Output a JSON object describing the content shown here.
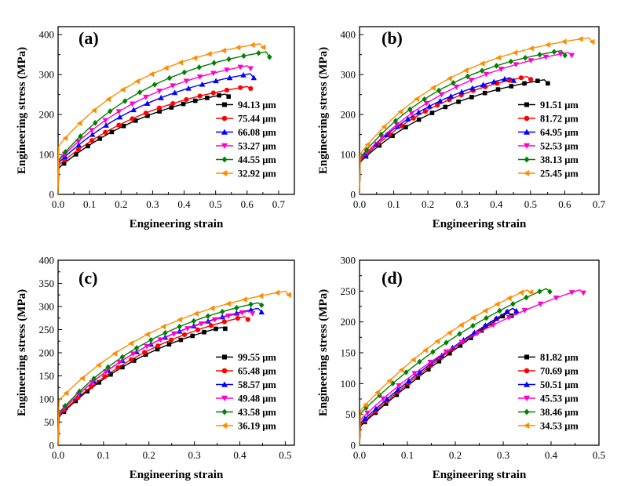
{
  "chart_data": [
    {
      "type": "line",
      "panel_label": "(a)",
      "xlabel": "Engineering strain",
      "ylabel": "Engineering stress (MPa)",
      "xlim": [
        0,
        0.75
      ],
      "ylim": [
        0,
        420
      ],
      "xticks": [
        0.0,
        0.1,
        0.2,
        0.3,
        0.4,
        0.5,
        0.6,
        0.7
      ],
      "yticks": [
        0,
        100,
        200,
        300,
        400
      ],
      "grid": false,
      "legend_position": "bottom-right",
      "series": [
        {
          "name": "94.13 μm",
          "color": "#000000",
          "marker": "square",
          "y0": 65,
          "end_x": 0.53,
          "end_y": 251,
          "drop_y": 245,
          "k": 2.8
        },
        {
          "name": "75.44 μm",
          "color": "#ff0000",
          "marker": "circle",
          "y0": 72,
          "end_x": 0.6,
          "end_y": 270,
          "drop_y": 265,
          "k": 2.8
        },
        {
          "name": "66.08 μm",
          "color": "#0000ff",
          "marker": "triangle-up",
          "y0": 78,
          "end_x": 0.61,
          "end_y": 302,
          "drop_y": 292,
          "k": 2.8
        },
        {
          "name": "53.27 μm",
          "color": "#ff00cc",
          "marker": "triangle-down",
          "y0": 83,
          "end_x": 0.6,
          "end_y": 322,
          "drop_y": 315,
          "k": 2.9
        },
        {
          "name": "44.55 μm",
          "color": "#008000",
          "marker": "diamond",
          "y0": 85,
          "end_x": 0.66,
          "end_y": 357,
          "drop_y": 344,
          "k": 3.0
        },
        {
          "name": "32.92 μm",
          "color": "#ff8c00",
          "marker": "triangle-left",
          "y0": 120,
          "end_x": 0.64,
          "end_y": 377,
          "drop_y": 368,
          "k": 3.2
        }
      ]
    },
    {
      "type": "line",
      "panel_label": "(b)",
      "xlabel": "Engineering strain",
      "ylabel": "Engineering stress (MPa)",
      "xlim": [
        0,
        0.7
      ],
      "ylim": [
        0,
        420
      ],
      "xticks": [
        0.0,
        0.1,
        0.2,
        0.3,
        0.4,
        0.5,
        0.6,
        0.7
      ],
      "yticks": [
        0,
        100,
        200,
        300,
        400
      ],
      "grid": false,
      "legend_position": "bottom-right",
      "series": [
        {
          "name": "91.51 μm",
          "color": "#000000",
          "marker": "square",
          "y0": 80,
          "end_x": 0.54,
          "end_y": 287,
          "drop_y": 278,
          "k": 3.2
        },
        {
          "name": "81.72 μm",
          "color": "#ff0000",
          "marker": "circle",
          "y0": 82,
          "end_x": 0.49,
          "end_y": 295,
          "drop_y": 288,
          "k": 3.4
        },
        {
          "name": "64.95 μm",
          "color": "#0000ff",
          "marker": "triangle-up",
          "y0": 85,
          "end_x": 0.44,
          "end_y": 292,
          "drop_y": 285,
          "k": 3.6
        },
        {
          "name": "52.53 μm",
          "color": "#ff00cc",
          "marker": "triangle-down",
          "y0": 85,
          "end_x": 0.61,
          "end_y": 355,
          "drop_y": 348,
          "k": 3.0
        },
        {
          "name": "38.13 μm",
          "color": "#008000",
          "marker": "diamond",
          "y0": 90,
          "end_x": 0.59,
          "end_y": 360,
          "drop_y": 348,
          "k": 3.4
        },
        {
          "name": "25.45 μm",
          "color": "#ff8c00",
          "marker": "triangle-left",
          "y0": 100,
          "end_x": 0.67,
          "end_y": 392,
          "drop_y": 382,
          "k": 3.3
        }
      ]
    },
    {
      "type": "line",
      "panel_label": "(c)",
      "xlabel": "Engineering strain",
      "ylabel": "Engineering stress (MPa)",
      "xlim": [
        0,
        0.52
      ],
      "ylim": [
        0,
        400
      ],
      "xticks": [
        0.0,
        0.1,
        0.2,
        0.3,
        0.4,
        0.5
      ],
      "yticks": [
        0,
        50,
        100,
        150,
        200,
        250,
        300,
        350,
        400
      ],
      "grid": false,
      "legend_position": "bottom-right",
      "series": [
        {
          "name": "99.55 μm",
          "color": "#000000",
          "marker": "square",
          "y0": 60,
          "end_x": 0.36,
          "end_y": 255,
          "drop_y": 252,
          "k": 3.8
        },
        {
          "name": "65.48 μm",
          "color": "#ff0000",
          "marker": "circle",
          "y0": 62,
          "end_x": 0.41,
          "end_y": 278,
          "drop_y": 272,
          "k": 3.6
        },
        {
          "name": "58.57 μm",
          "color": "#0000ff",
          "marker": "triangle-up",
          "y0": 65,
          "end_x": 0.44,
          "end_y": 296,
          "drop_y": 288,
          "k": 3.8
        },
        {
          "name": "49.48 μm",
          "color": "#ff00cc",
          "marker": "triangle-down",
          "y0": 65,
          "end_x": 0.42,
          "end_y": 290,
          "drop_y": 285,
          "k": 3.9
        },
        {
          "name": "43.58 μm",
          "color": "#008000",
          "marker": "diamond",
          "y0": 68,
          "end_x": 0.44,
          "end_y": 308,
          "drop_y": 303,
          "k": 3.8
        },
        {
          "name": "36.19 μm",
          "color": "#ff8c00",
          "marker": "triangle-left",
          "y0": 95,
          "end_x": 0.5,
          "end_y": 333,
          "drop_y": 325,
          "k": 3.6
        }
      ]
    },
    {
      "type": "line",
      "panel_label": "(d)",
      "xlabel": "Engineering strain",
      "ylabel": "Engineering stress (MPa)",
      "xlim": [
        0,
        0.5
      ],
      "ylim": [
        0,
        300
      ],
      "xticks": [
        0.0,
        0.1,
        0.2,
        0.3,
        0.4,
        0.5
      ],
      "yticks": [
        0,
        50,
        100,
        150,
        200,
        250,
        300
      ],
      "grid": false,
      "legend_position": "bottom-right",
      "series": [
        {
          "name": "81.82 μm",
          "color": "#000000",
          "marker": "square",
          "y0": 30,
          "end_x": 0.31,
          "end_y": 215,
          "drop_y": 210,
          "k": 1.0
        },
        {
          "name": "70.69 μm",
          "color": "#ff0000",
          "marker": "circle",
          "y0": 32,
          "end_x": 0.32,
          "end_y": 222,
          "drop_y": 215,
          "k": 1.2
        },
        {
          "name": "50.51 μm",
          "color": "#0000ff",
          "marker": "triangle-up",
          "y0": 35,
          "end_x": 0.32,
          "end_y": 222,
          "drop_y": 218,
          "k": 1.4
        },
        {
          "name": "45.53 μm",
          "color": "#ff00cc",
          "marker": "triangle-down",
          "y0": 40,
          "end_x": 0.46,
          "end_y": 252,
          "drop_y": 247,
          "k": 2.4
        },
        {
          "name": "38.46 μm",
          "color": "#008000",
          "marker": "diamond",
          "y0": 50,
          "end_x": 0.39,
          "end_y": 254,
          "drop_y": 249,
          "k": 2.2
        },
        {
          "name": "34.53 μm",
          "color": "#ff8c00",
          "marker": "triangle-left",
          "y0": 55,
          "end_x": 0.35,
          "end_y": 252,
          "drop_y": 248,
          "k": 2.6
        }
      ]
    }
  ]
}
